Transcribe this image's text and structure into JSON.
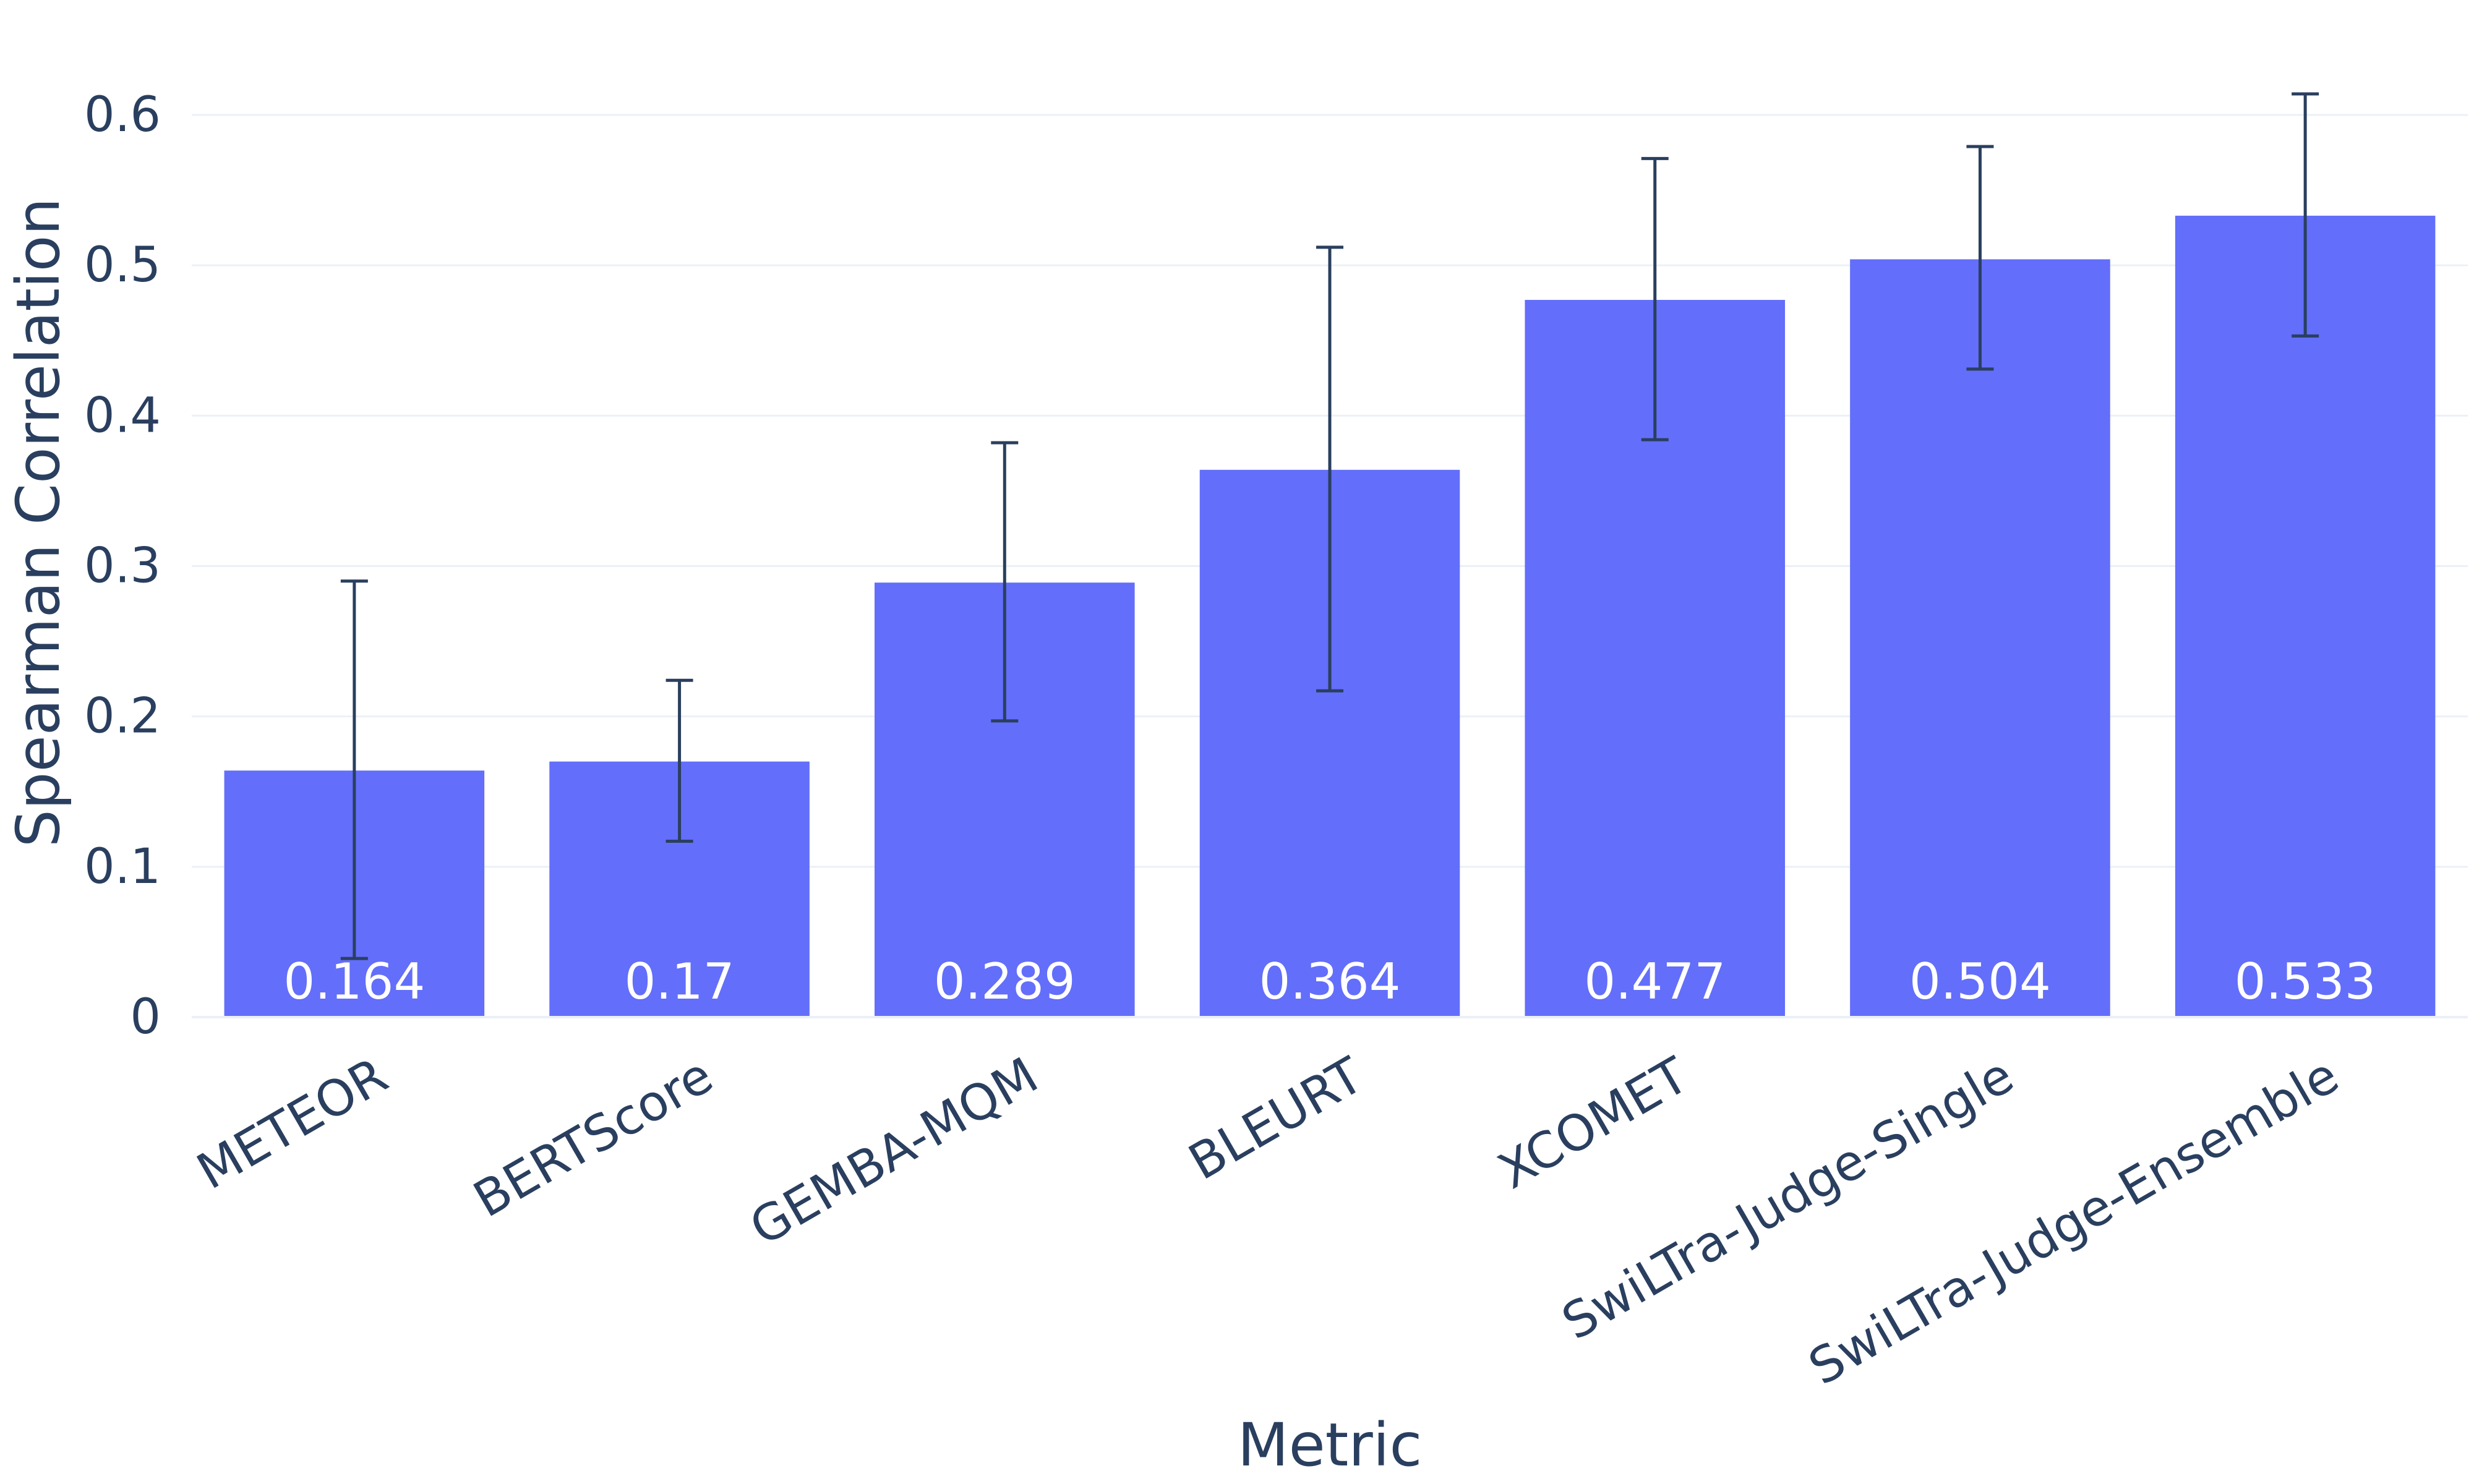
{
  "chart_data": {
    "type": "bar",
    "title": "",
    "xlabel": "Metric",
    "ylabel": "Spearman Correlation",
    "ylim": [
      0,
      0.66
    ],
    "yticks": [
      0,
      0.1,
      0.2,
      0.3,
      0.4,
      0.5,
      0.6
    ],
    "ytick_labels": [
      "0",
      "0.1",
      "0.2",
      "0.3",
      "0.4",
      "0.5",
      "0.6"
    ],
    "categories": [
      "METEOR",
      "BERTScore",
      "GEMBA-MQM",
      "BLEURT",
      "XCOMET",
      "SwiLTra-Judge-Single",
      "SwiLTra-Judge-Ensemble"
    ],
    "values": [
      0.164,
      0.17,
      0.289,
      0.364,
      0.477,
      0.504,
      0.533
    ],
    "value_labels": [
      "0.164",
      "0.17",
      "0.289",
      "0.364",
      "0.477",
      "0.504",
      "0.533"
    ],
    "error_low": [
      0.039,
      0.117,
      0.197,
      0.217,
      0.384,
      0.431,
      0.453
    ],
    "error_high": [
      0.29,
      0.224,
      0.382,
      0.512,
      0.571,
      0.579,
      0.614
    ],
    "grid": true,
    "colors": {
      "bar": "#636efa",
      "error_bar": "#2a3f5f",
      "grid": "#ebf0f8",
      "text": "#2a3f5f",
      "bar_text": "#ffffff"
    }
  }
}
